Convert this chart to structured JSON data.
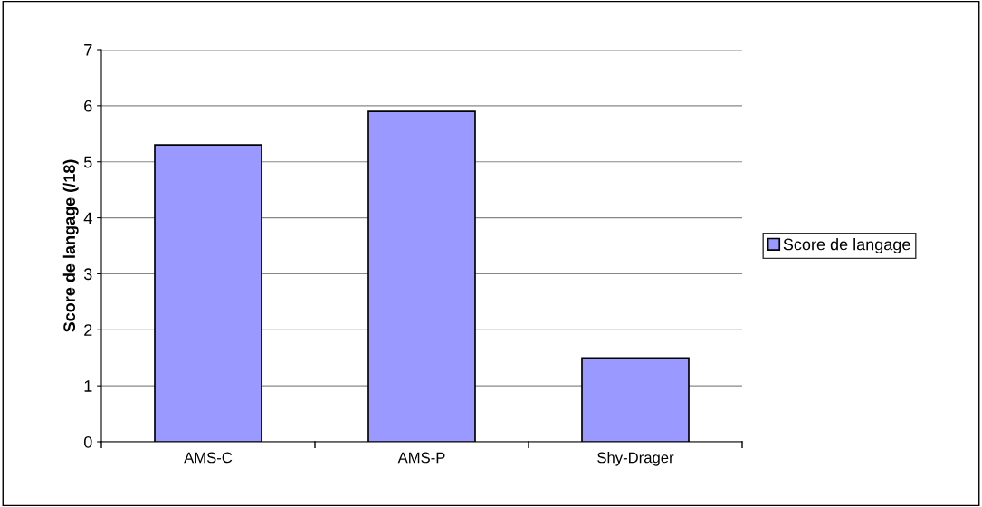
{
  "chart_data": {
    "type": "bar",
    "ylabel": "Score de langage (/18)",
    "categories": [
      "AMS-C",
      "AMS-P",
      "Shy-Drager"
    ],
    "series": [
      {
        "name": "Score de langage",
        "color": "#9999ff",
        "values": [
          5.3,
          5.9,
          1.5
        ]
      }
    ],
    "ylim": [
      0,
      7
    ],
    "yticks": [
      0,
      1,
      2,
      3,
      4,
      5,
      6,
      7
    ],
    "grid": "y",
    "legend": "right"
  }
}
